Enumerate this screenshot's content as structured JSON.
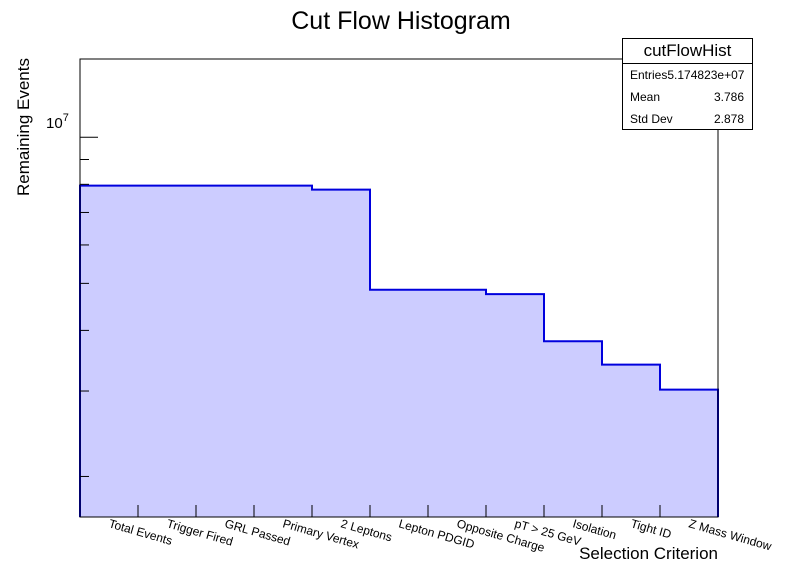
{
  "chart_data": {
    "type": "bar",
    "title": "Cut Flow Histogram",
    "xlabel": "Selection Criterion",
    "ylabel": "Remaining Events",
    "yscale": "log",
    "ylim": [
      1650000,
      14500000
    ],
    "y_major_tick_label": {
      "value": 10000000,
      "base": "10",
      "exponent": "7"
    },
    "categories": [
      "Total Events",
      "Trigger Fired",
      "GRL Passed",
      "Primary Vertex",
      "2 Leptons",
      "Lepton PDGID",
      "Opposite Charge",
      "pT > 25 GeV",
      "Isolation",
      "Tight ID",
      "Z Mass Window"
    ],
    "series": [
      {
        "values": [
          7950000,
          7950000,
          7950000,
          7950000,
          7800000,
          4850000,
          4850000,
          4750000,
          3800000,
          3400000,
          3020000
        ]
      }
    ],
    "colors": {
      "fill": "#ccccff",
      "line": "#0000dd"
    },
    "grid": false,
    "legend": "none"
  },
  "stats": {
    "title": "cutFlowHist",
    "rows": [
      {
        "label": "Entries",
        "value": "5.174823e+07"
      },
      {
        "label": "Mean",
        "value": "3.786"
      },
      {
        "label": "Std Dev",
        "value": "2.878"
      }
    ]
  }
}
